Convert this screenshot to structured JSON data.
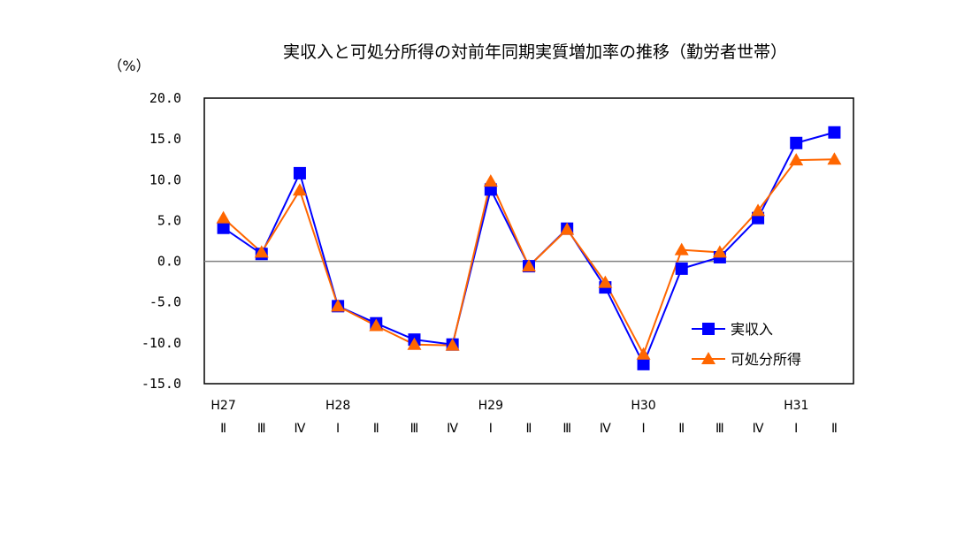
{
  "chart_data": {
    "type": "line",
    "title": "実収入と可処分所得の対前年同期実質増加率の推移（勤労者世帯）",
    "ylabel": "（%）",
    "ylim": [
      -15,
      20
    ],
    "yticks": [
      "20.0",
      "15.0",
      "10.0",
      "5.0",
      "0.0",
      "-5.0",
      "-10.0",
      "-15.0"
    ],
    "categories": [
      {
        "year": "H27",
        "quarter": "Ⅱ"
      },
      {
        "year": "",
        "quarter": "Ⅲ"
      },
      {
        "year": "",
        "quarter": "Ⅳ"
      },
      {
        "year": "H28",
        "quarter": "Ⅰ"
      },
      {
        "year": "",
        "quarter": "Ⅱ"
      },
      {
        "year": "",
        "quarter": "Ⅲ"
      },
      {
        "year": "",
        "quarter": "Ⅳ"
      },
      {
        "year": "H29",
        "quarter": "Ⅰ"
      },
      {
        "year": "",
        "quarter": "Ⅱ"
      },
      {
        "year": "",
        "quarter": "Ⅲ"
      },
      {
        "year": "",
        "quarter": "Ⅳ"
      },
      {
        "year": "H30",
        "quarter": "Ⅰ"
      },
      {
        "year": "",
        "quarter": "Ⅱ"
      },
      {
        "year": "",
        "quarter": "Ⅲ"
      },
      {
        "year": "",
        "quarter": "Ⅳ"
      },
      {
        "year": "H31",
        "quarter": "Ⅰ"
      },
      {
        "year": "",
        "quarter": "Ⅱ"
      }
    ],
    "series": [
      {
        "name": "実収入",
        "color": "#0000ff",
        "marker": "square",
        "values": [
          4.1,
          0.9,
          10.8,
          -5.5,
          -7.6,
          -9.6,
          -10.2,
          8.8,
          -0.6,
          4.0,
          -3.2,
          -12.6,
          -0.9,
          0.5,
          5.3,
          14.5,
          15.8
        ]
      },
      {
        "name": "可処分所得",
        "color": "#ff6600",
        "marker": "triangle",
        "values": [
          5.3,
          1.1,
          8.7,
          -5.5,
          -7.9,
          -10.2,
          -10.3,
          9.8,
          -0.6,
          3.9,
          -2.6,
          -11.4,
          1.4,
          1.1,
          6.2,
          12.4,
          12.5
        ]
      }
    ],
    "grid": false,
    "zero_line": true,
    "legend": "bottom-right"
  }
}
